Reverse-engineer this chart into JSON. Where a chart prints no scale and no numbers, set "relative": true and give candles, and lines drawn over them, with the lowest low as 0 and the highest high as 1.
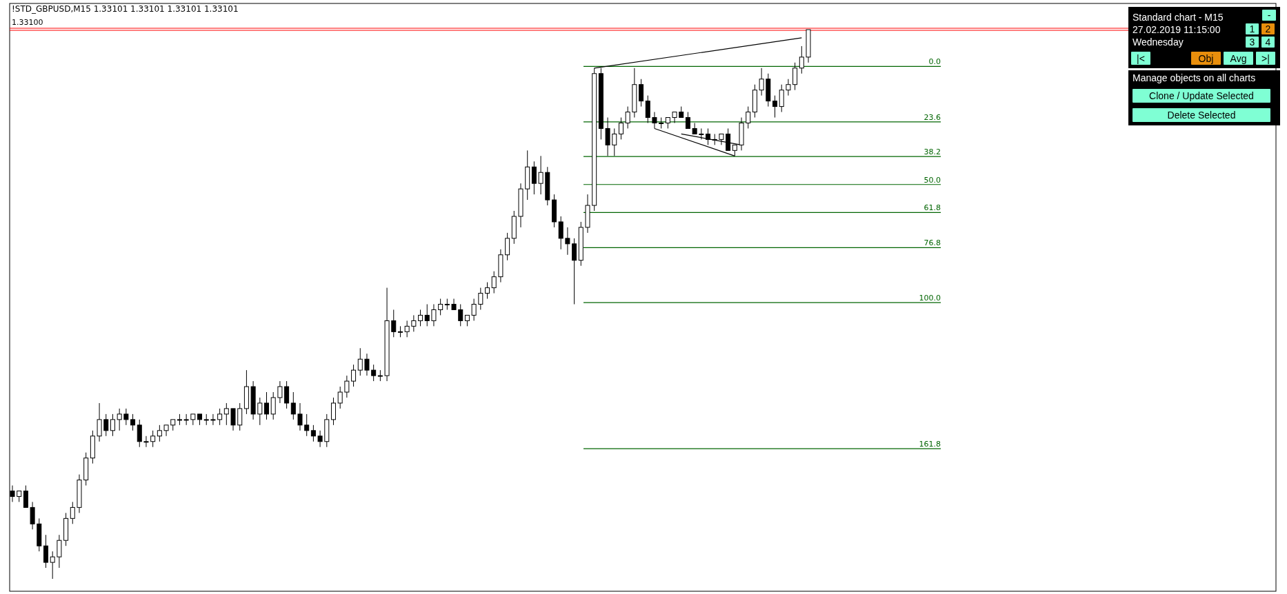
{
  "chart_data": {
    "type": "candlestick",
    "title": "!STD_GBPUSD,M15  1.33101 1.33101 1.33101 1.33101",
    "relative": true,
    "tick_labels": false,
    "color": "#000000",
    "categories": [
      null,
      null,
      null,
      null,
      null,
      null,
      null,
      null,
      null,
      null,
      null,
      null,
      null,
      null,
      null,
      null,
      null,
      null,
      null,
      null,
      null,
      null,
      null,
      null,
      null,
      null,
      null,
      null,
      null,
      null,
      null,
      null,
      null,
      null,
      null,
      null,
      null,
      null,
      null,
      null,
      null,
      null,
      null,
      null,
      null,
      null,
      null,
      null,
      null,
      null,
      null,
      null,
      null,
      null,
      null,
      null,
      null,
      null,
      null,
      null,
      null,
      null,
      null,
      null,
      null,
      null,
      null,
      null,
      null,
      null,
      null,
      null,
      null,
      null,
      null,
      null,
      null,
      null,
      null,
      null,
      null,
      null,
      null,
      null,
      null,
      null,
      null,
      null,
      null,
      null,
      null,
      null,
      null,
      null,
      null,
      null,
      null,
      null,
      null,
      null,
      null,
      null,
      null,
      null,
      null,
      null,
      null,
      null,
      null,
      null,
      null,
      null,
      null,
      null,
      null,
      null,
      null,
      null,
      null,
      null
    ],
    "ohlc": [
      [
        0.16,
        0.17,
        0.14,
        0.15
      ],
      [
        0.15,
        0.16,
        0.14,
        0.16
      ],
      [
        0.16,
        0.17,
        0.13,
        0.13
      ],
      [
        0.13,
        0.14,
        0.09,
        0.1
      ],
      [
        0.1,
        0.11,
        0.05,
        0.06
      ],
      [
        0.06,
        0.08,
        0.02,
        0.03
      ],
      [
        0.03,
        0.05,
        0,
        0.04
      ],
      [
        0.04,
        0.08,
        0.02,
        0.07
      ],
      [
        0.07,
        0.12,
        0.06,
        0.11
      ],
      [
        0.11,
        0.14,
        0.1,
        0.13
      ],
      [
        0.13,
        0.19,
        0.12,
        0.18
      ],
      [
        0.18,
        0.23,
        0.17,
        0.22
      ],
      [
        0.22,
        0.27,
        0.21,
        0.26
      ],
      [
        0.26,
        0.32,
        0.25,
        0.29
      ],
      [
        0.29,
        0.3,
        0.26,
        0.27
      ],
      [
        0.27,
        0.3,
        0.26,
        0.29
      ],
      [
        0.29,
        0.31,
        0.27,
        0.3
      ],
      [
        0.3,
        0.31,
        0.28,
        0.29
      ],
      [
        0.29,
        0.3,
        0.27,
        0.28
      ],
      [
        0.28,
        0.29,
        0.24,
        0.25
      ],
      [
        0.25,
        0.26,
        0.24,
        0.25
      ],
      [
        0.25,
        0.27,
        0.24,
        0.26
      ],
      [
        0.26,
        0.28,
        0.25,
        0.27
      ],
      [
        0.27,
        0.28,
        0.26,
        0.28
      ],
      [
        0.28,
        0.29,
        0.27,
        0.29
      ],
      [
        0.29,
        0.3,
        0.28,
        0.29
      ],
      [
        0.29,
        0.3,
        0.28,
        0.29
      ],
      [
        0.29,
        0.3,
        0.28,
        0.3
      ],
      [
        0.3,
        0.3,
        0.28,
        0.29
      ],
      [
        0.29,
        0.3,
        0.28,
        0.29
      ],
      [
        0.29,
        0.3,
        0.28,
        0.29
      ],
      [
        0.29,
        0.31,
        0.28,
        0.3
      ],
      [
        0.3,
        0.32,
        0.28,
        0.31
      ],
      [
        0.31,
        0.31,
        0.27,
        0.28
      ],
      [
        0.28,
        0.32,
        0.27,
        0.31
      ],
      [
        0.31,
        0.38,
        0.3,
        0.35
      ],
      [
        0.35,
        0.36,
        0.29,
        0.3
      ],
      [
        0.3,
        0.33,
        0.28,
        0.32
      ],
      [
        0.32,
        0.34,
        0.29,
        0.3
      ],
      [
        0.3,
        0.34,
        0.29,
        0.33
      ],
      [
        0.33,
        0.36,
        0.32,
        0.35
      ],
      [
        0.35,
        0.36,
        0.31,
        0.32
      ],
      [
        0.32,
        0.34,
        0.29,
        0.3
      ],
      [
        0.3,
        0.32,
        0.27,
        0.28
      ],
      [
        0.28,
        0.3,
        0.26,
        0.27
      ],
      [
        0.27,
        0.28,
        0.25,
        0.26
      ],
      [
        0.26,
        0.27,
        0.24,
        0.25
      ],
      [
        0.25,
        0.3,
        0.24,
        0.29
      ],
      [
        0.29,
        0.33,
        0.28,
        0.32
      ],
      [
        0.32,
        0.35,
        0.31,
        0.34
      ],
      [
        0.34,
        0.37,
        0.33,
        0.36
      ],
      [
        0.36,
        0.39,
        0.35,
        0.38
      ],
      [
        0.38,
        0.42,
        0.37,
        0.4
      ],
      [
        0.4,
        0.41,
        0.37,
        0.38
      ],
      [
        0.38,
        0.39,
        0.36,
        0.37
      ],
      [
        0.37,
        0.38,
        0.36,
        0.37
      ],
      [
        0.37,
        0.53,
        0.36,
        0.47
      ],
      [
        0.47,
        0.49,
        0.44,
        0.45
      ],
      [
        0.45,
        0.46,
        0.44,
        0.45
      ],
      [
        0.45,
        0.47,
        0.44,
        0.46
      ],
      [
        0.46,
        0.48,
        0.45,
        0.47
      ],
      [
        0.47,
        0.49,
        0.46,
        0.48
      ],
      [
        0.48,
        0.5,
        0.46,
        0.47
      ],
      [
        0.47,
        0.5,
        0.46,
        0.49
      ],
      [
        0.49,
        0.51,
        0.48,
        0.5
      ],
      [
        0.5,
        0.51,
        0.49,
        0.5
      ],
      [
        0.5,
        0.51,
        0.49,
        0.49
      ],
      [
        0.49,
        0.5,
        0.46,
        0.47
      ],
      [
        0.47,
        0.48,
        0.46,
        0.48
      ],
      [
        0.48,
        0.51,
        0.47,
        0.5
      ],
      [
        0.5,
        0.53,
        0.49,
        0.52
      ],
      [
        0.52,
        0.54,
        0.51,
        0.53
      ],
      [
        0.53,
        0.56,
        0.52,
        0.55
      ],
      [
        0.55,
        0.6,
        0.54,
        0.59
      ],
      [
        0.59,
        0.63,
        0.58,
        0.62
      ],
      [
        0.62,
        0.67,
        0.61,
        0.66
      ],
      [
        0.66,
        0.72,
        0.64,
        0.71
      ],
      [
        0.71,
        0.78,
        0.69,
        0.75
      ],
      [
        0.75,
        0.76,
        0.7,
        0.72
      ],
      [
        0.72,
        0.77,
        0.7,
        0.74
      ],
      [
        0.74,
        0.75,
        0.68,
        0.69
      ],
      [
        0.69,
        0.7,
        0.64,
        0.65
      ],
      [
        0.65,
        0.66,
        0.6,
        0.62
      ],
      [
        0.62,
        0.64,
        0.59,
        0.61
      ],
      [
        0.61,
        0.62,
        0.5,
        0.58
      ],
      [
        0.58,
        0.65,
        0.57,
        0.64
      ],
      [
        0.64,
        0.7,
        0.63,
        0.68
      ],
      [
        0.68,
        0.93,
        0.67,
        0.92
      ],
      [
        0.92,
        0.93,
        0.8,
        0.82
      ],
      [
        0.82,
        0.84,
        0.77,
        0.79
      ],
      [
        0.79,
        0.82,
        0.77,
        0.81
      ],
      [
        0.81,
        0.84,
        0.8,
        0.83
      ],
      [
        0.83,
        0.86,
        0.82,
        0.85
      ],
      [
        0.85,
        0.93,
        0.84,
        0.9
      ],
      [
        0.9,
        0.91,
        0.86,
        0.87
      ],
      [
        0.87,
        0.88,
        0.83,
        0.84
      ],
      [
        0.84,
        0.85,
        0.82,
        0.83
      ],
      [
        0.83,
        0.84,
        0.82,
        0.83
      ],
      [
        0.83,
        0.84,
        0.82,
        0.84
      ],
      [
        0.84,
        0.85,
        0.83,
        0.85
      ],
      [
        0.85,
        0.86,
        0.84,
        0.84
      ],
      [
        0.84,
        0.85,
        0.82,
        0.82
      ],
      [
        0.82,
        0.83,
        0.81,
        0.81
      ],
      [
        0.81,
        0.82,
        0.8,
        0.81
      ],
      [
        0.81,
        0.82,
        0.79,
        0.8
      ],
      [
        0.8,
        0.81,
        0.79,
        0.8
      ],
      [
        0.8,
        0.81,
        0.79,
        0.81
      ],
      [
        0.81,
        0.82,
        0.78,
        0.78
      ],
      [
        0.78,
        0.79,
        0.77,
        0.79
      ],
      [
        0.79,
        0.84,
        0.78,
        0.83
      ],
      [
        0.83,
        0.86,
        0.82,
        0.85
      ],
      [
        0.85,
        0.9,
        0.84,
        0.89
      ],
      [
        0.89,
        0.93,
        0.88,
        0.91
      ],
      [
        0.91,
        0.92,
        0.86,
        0.87
      ],
      [
        0.87,
        0.88,
        0.84,
        0.86
      ],
      [
        0.86,
        0.9,
        0.85,
        0.89
      ],
      [
        0.89,
        0.91,
        0.88,
        0.9
      ],
      [
        0.9,
        0.94,
        0.89,
        0.93
      ],
      [
        0.93,
        0.97,
        0.92,
        0.95
      ],
      [
        0.95,
        1.0,
        0.94,
        1.0
      ]
    ],
    "series": [
      {
        "type": "line",
        "color": "#000000",
        "values": [
          null,
          null,
          null,
          null,
          null,
          null,
          null,
          null,
          null,
          null,
          null,
          null,
          null,
          null,
          null,
          null,
          null,
          null,
          null,
          null,
          null,
          null,
          null,
          null,
          null,
          null,
          null,
          null,
          null,
          null,
          null,
          null,
          null,
          null,
          null,
          null,
          null,
          null,
          null,
          null,
          null,
          null,
          null,
          null,
          null,
          null,
          null,
          null,
          null,
          null,
          null,
          null,
          null,
          null,
          null,
          null,
          null,
          null,
          null,
          null,
          null,
          null,
          null,
          null,
          null,
          null,
          null,
          null,
          null,
          null,
          null,
          null,
          null,
          null,
          null,
          null,
          null,
          null,
          null,
          null,
          null,
          null,
          null,
          null,
          null,
          null,
          null,
          0.93,
          null,
          null,
          null,
          null,
          null,
          null,
          null,
          null,
          null,
          null,
          null,
          null,
          null,
          null,
          null,
          null,
          null,
          null,
          null,
          null,
          null,
          null,
          null,
          null,
          null,
          null,
          null,
          null,
          null,
          null,
          0.985,
          null
        ]
      },
      {
        "type": "line",
        "color": "#000000",
        "values": [
          null,
          null,
          null,
          null,
          null,
          null,
          null,
          null,
          null,
          null,
          null,
          null,
          null,
          null,
          null,
          null,
          null,
          null,
          null,
          null,
          null,
          null,
          null,
          null,
          null,
          null,
          null,
          null,
          null,
          null,
          null,
          null,
          null,
          null,
          null,
          null,
          null,
          null,
          null,
          null,
          null,
          null,
          null,
          null,
          null,
          null,
          null,
          null,
          null,
          null,
          null,
          null,
          null,
          null,
          null,
          null,
          null,
          null,
          null,
          null,
          null,
          null,
          null,
          null,
          null,
          null,
          null,
          null,
          null,
          null,
          null,
          null,
          null,
          null,
          null,
          null,
          null,
          null,
          null,
          null,
          null,
          null,
          null,
          null,
          null,
          null,
          null,
          null,
          null,
          null,
          null,
          null,
          null,
          null,
          null,
          null,
          0.82,
          null,
          null,
          null,
          null,
          null,
          null,
          null,
          null,
          null,
          null,
          null,
          0.77,
          null,
          null,
          null,
          null,
          null,
          null,
          null,
          null,
          null,
          null,
          null
        ]
      },
      {
        "type": "line",
        "color": "#000000",
        "values": [
          null,
          null,
          null,
          null,
          null,
          null,
          null,
          null,
          null,
          null,
          null,
          null,
          null,
          null,
          null,
          null,
          null,
          null,
          null,
          null,
          null,
          null,
          null,
          null,
          null,
          null,
          null,
          null,
          null,
          null,
          null,
          null,
          null,
          null,
          null,
          null,
          null,
          null,
          null,
          null,
          null,
          null,
          null,
          null,
          null,
          null,
          null,
          null,
          null,
          null,
          null,
          null,
          null,
          null,
          null,
          null,
          null,
          null,
          null,
          null,
          null,
          null,
          null,
          null,
          null,
          null,
          null,
          null,
          null,
          null,
          null,
          null,
          null,
          null,
          null,
          null,
          null,
          null,
          null,
          null,
          null,
          null,
          null,
          null,
          null,
          null,
          null,
          null,
          null,
          null,
          null,
          null,
          null,
          null,
          null,
          null,
          null,
          null,
          null,
          null,
          0.81,
          null,
          null,
          null,
          null,
          null,
          null,
          null,
          null,
          0.79,
          null,
          null,
          null,
          null,
          null,
          null,
          null,
          null,
          null,
          null
        ]
      }
    ],
    "ref_lines": [
      {
        "axis": "y",
        "value": 0.933,
        "color": "#006400"
      },
      {
        "axis": "y",
        "value": 0.832,
        "color": "#006400"
      },
      {
        "axis": "y",
        "value": 0.769,
        "color": "#006400"
      },
      {
        "axis": "y",
        "value": 0.718,
        "color": "#006400"
      },
      {
        "axis": "y",
        "value": 0.667,
        "color": "#006400"
      },
      {
        "axis": "y",
        "value": 0.603,
        "color": "#006400"
      },
      {
        "axis": "y",
        "value": 0.503,
        "color": "#006400"
      },
      {
        "axis": "y",
        "value": 0.237,
        "color": "#006400"
      },
      {
        "axis": "y",
        "value": 1.0,
        "color": "#ff0000"
      }
    ],
    "annotations": [
      "Standard chart - M15",
      "27.02.2019   11:15:00",
      "Wednesday",
      "-",
      "1",
      "2",
      "3",
      "4",
      "|<",
      "Obj",
      "Avg",
      ">|",
      "Manage objects on all charts",
      "Clone / Update Selected",
      "Delete Selected",
      "1.33100",
      {
        "text": "0.0",
        "y": 0.933
      },
      {
        "text": "23.6",
        "y": 0.832
      },
      {
        "text": "38.2",
        "y": 0.769
      },
      {
        "text": "50.0",
        "y": 0.718
      },
      {
        "text": "61.8",
        "y": 0.667
      },
      {
        "text": "76.8",
        "y": 0.603
      },
      {
        "text": "100.0",
        "y": 0.503
      },
      {
        "text": "161.8",
        "y": 0.237
      }
    ]
  }
}
